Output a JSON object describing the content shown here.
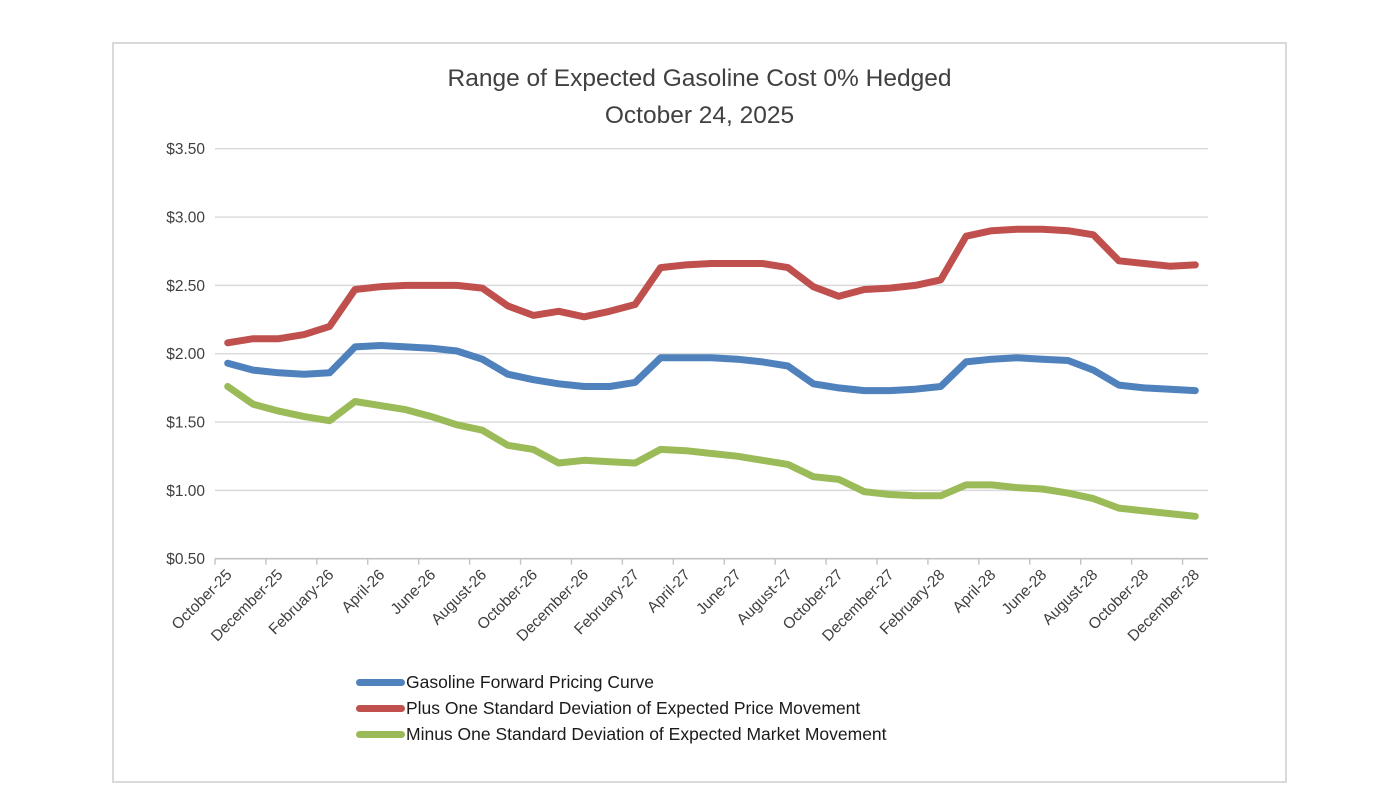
{
  "chart": {
    "title_line1": "Range of Expected Gasoline Cost 0% Hedged",
    "title_line2": "October 24, 2025"
  },
  "chart_data": {
    "type": "line",
    "title": "Range of Expected Gasoline Cost 0% Hedged",
    "subtitle": "October 24, 2025",
    "grid": true,
    "legend_position": "bottom",
    "gridline_color": "#d9d9d9",
    "axis_line_color": "#c3c3c3",
    "axis_text_color": "#404040",
    "x_categories": [
      "October-25",
      "November-25",
      "December-25",
      "January-26",
      "February-26",
      "March-26",
      "April-26",
      "May-26",
      "June-26",
      "July-26",
      "August-26",
      "September-26",
      "October-26",
      "November-26",
      "December-26",
      "January-27",
      "February-27",
      "March-27",
      "April-27",
      "May-27",
      "June-27",
      "July-27",
      "August-27",
      "September-27",
      "October-27",
      "November-27",
      "December-27",
      "January-28",
      "February-28",
      "March-28",
      "April-28",
      "May-28",
      "June-28",
      "July-28",
      "August-28",
      "September-28",
      "October-28",
      "November-28",
      "December-28"
    ],
    "x_tick_labels": [
      "October-25",
      "December-25",
      "February-26",
      "April-26",
      "June-26",
      "August-26",
      "October-26",
      "December-26",
      "February-27",
      "April-27",
      "June-27",
      "August-27",
      "October-27",
      "December-27",
      "February-28",
      "April-28",
      "June-28",
      "August-28",
      "October-28",
      "December-28"
    ],
    "y_axis": {
      "min": 0.5,
      "max": 3.5,
      "step": 0.5,
      "tick_labels": [
        "$0.50",
        "$1.00",
        "$1.50",
        "$2.00",
        "$2.50",
        "$3.00",
        "$3.50"
      ]
    },
    "series": [
      {
        "name": "Gasoline Forward Pricing Curve",
        "color": "#4F81BD",
        "values": [
          1.93,
          1.88,
          1.86,
          1.85,
          1.86,
          2.05,
          2.06,
          2.05,
          2.04,
          2.02,
          1.96,
          1.85,
          1.81,
          1.78,
          1.76,
          1.76,
          1.79,
          1.97,
          1.97,
          1.97,
          1.96,
          1.94,
          1.91,
          1.78,
          1.75,
          1.73,
          1.73,
          1.74,
          1.76,
          1.94,
          1.96,
          1.97,
          1.96,
          1.95,
          1.88,
          1.77,
          1.75,
          1.74,
          1.73
        ]
      },
      {
        "name": "Plus One Standard Deviation of Expected Price Movement",
        "color": "#C0504D",
        "values": [
          2.08,
          2.11,
          2.11,
          2.14,
          2.2,
          2.47,
          2.49,
          2.5,
          2.5,
          2.5,
          2.48,
          2.35,
          2.28,
          2.31,
          2.27,
          2.31,
          2.36,
          2.63,
          2.65,
          2.66,
          2.66,
          2.66,
          2.63,
          2.49,
          2.42,
          2.47,
          2.48,
          2.5,
          2.54,
          2.86,
          2.9,
          2.91,
          2.91,
          2.9,
          2.87,
          2.68,
          2.66,
          2.64,
          2.65
        ]
      },
      {
        "name": "Minus One Standard Deviation of Expected Market Movement",
        "color": "#9BBB59",
        "values": [
          1.76,
          1.63,
          1.58,
          1.54,
          1.51,
          1.65,
          1.62,
          1.59,
          1.54,
          1.48,
          1.44,
          1.33,
          1.3,
          1.2,
          1.22,
          1.21,
          1.2,
          1.3,
          1.29,
          1.27,
          1.25,
          1.22,
          1.19,
          1.1,
          1.08,
          0.99,
          0.97,
          0.96,
          0.96,
          1.04,
          1.04,
          1.02,
          1.01,
          0.98,
          0.94,
          0.87,
          0.85,
          0.83,
          0.81
        ]
      }
    ]
  }
}
